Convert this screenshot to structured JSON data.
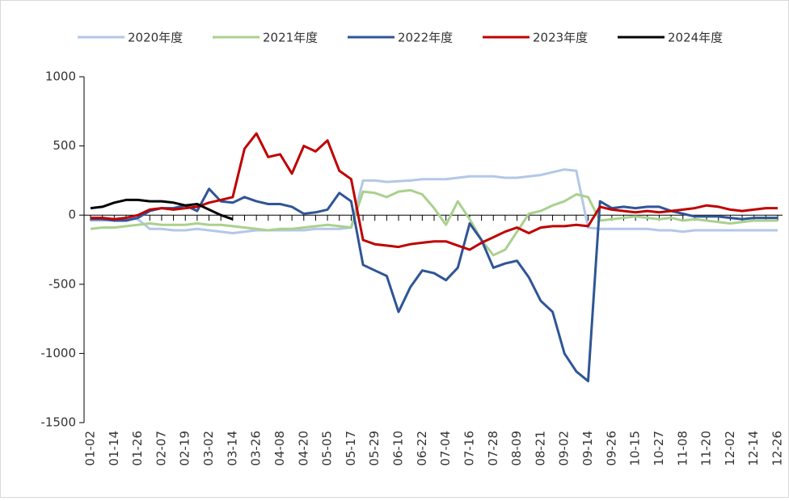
{
  "chart_data": {
    "type": "line",
    "categories": [
      "01-02",
      null,
      "01-14",
      null,
      "01-26",
      null,
      "02-07",
      null,
      "02-19",
      null,
      "03-02",
      null,
      "03-14",
      null,
      "03-26",
      null,
      "04-08",
      null,
      "04-20",
      null,
      "05-05",
      null,
      "05-17",
      null,
      "05-29",
      null,
      "06-10",
      null,
      "06-22",
      null,
      "07-04",
      null,
      "07-16",
      null,
      "07-28",
      null,
      "08-09",
      null,
      "08-21",
      null,
      "09-02",
      null,
      "09-14",
      null,
      "09-26",
      null,
      "10-15",
      null,
      "10-27",
      null,
      "11-08",
      null,
      "11-20",
      null,
      "12-02",
      null,
      "12-14",
      null,
      "12-26"
    ],
    "series": [
      {
        "name": "2020年度",
        "color": "#b4c7e7",
        "values": [
          -40,
          -40,
          -30,
          -20,
          -30,
          -100,
          -100,
          -110,
          -110,
          -100,
          -110,
          -120,
          -130,
          -120,
          -110,
          -110,
          -110,
          -110,
          -110,
          -100,
          -100,
          -100,
          -90,
          250,
          250,
          240,
          245,
          250,
          260,
          260,
          260,
          270,
          280,
          280,
          280,
          270,
          270,
          280,
          290,
          310,
          330,
          320,
          -90,
          -100,
          -100,
          -100,
          -100,
          -100,
          -110,
          -110,
          -120,
          -110,
          -110,
          -110,
          -110,
          -110,
          -110,
          -110,
          -110
        ]
      },
      {
        "name": "2021年度",
        "color": "#a9d18e",
        "values": [
          -100,
          -90,
          -90,
          -80,
          -70,
          -60,
          -70,
          -70,
          -70,
          -60,
          -70,
          -70,
          -80,
          -90,
          -100,
          -110,
          -100,
          -100,
          -90,
          -80,
          -70,
          -80,
          -90,
          170,
          160,
          130,
          170,
          180,
          150,
          50,
          -70,
          100,
          -30,
          -180,
          -290,
          -250,
          -120,
          10,
          30,
          70,
          100,
          150,
          130,
          -40,
          -30,
          -20,
          -10,
          -20,
          -30,
          -20,
          -40,
          -30,
          -40,
          -50,
          -60,
          -50,
          -40,
          -40,
          -40
        ]
      },
      {
        "name": "2022年度",
        "color": "#2f5597",
        "values": [
          -30,
          -30,
          -40,
          -40,
          -20,
          30,
          50,
          50,
          70,
          30,
          190,
          100,
          90,
          130,
          100,
          80,
          80,
          60,
          10,
          20,
          40,
          160,
          100,
          -360,
          -400,
          -440,
          -700,
          -520,
          -400,
          -420,
          -470,
          -380,
          -60,
          -180,
          -380,
          -350,
          -330,
          -450,
          -620,
          -700,
          -1000,
          -1130,
          -1200,
          100,
          50,
          60,
          50,
          60,
          60,
          30,
          10,
          -10,
          -10,
          -10,
          -20,
          -30,
          -20,
          -20,
          -20
        ]
      },
      {
        "name": "2023年度",
        "color": "#c00000",
        "values": [
          -20,
          -20,
          -30,
          -20,
          0,
          40,
          50,
          40,
          50,
          60,
          90,
          110,
          130,
          480,
          590,
          420,
          440,
          300,
          500,
          460,
          540,
          320,
          260,
          -180,
          -210,
          -220,
          -230,
          -210,
          -200,
          -190,
          -190,
          -220,
          -250,
          -200,
          -160,
          -120,
          -90,
          -130,
          -90,
          -80,
          -80,
          -70,
          -80,
          60,
          40,
          30,
          20,
          30,
          20,
          30,
          40,
          50,
          70,
          60,
          40,
          30,
          40,
          50,
          50
        ]
      },
      {
        "name": "2024年度",
        "color": "#000000",
        "values": [
          50,
          60,
          90,
          110,
          110,
          100,
          100,
          90,
          70,
          80,
          40,
          0,
          -30,
          null,
          null,
          null,
          null,
          null,
          null,
          null,
          null,
          null,
          null,
          null,
          null,
          null,
          null,
          null,
          null,
          null,
          null,
          null,
          null,
          null,
          null,
          null,
          null,
          null,
          null,
          null,
          null,
          null,
          null,
          null,
          null,
          null,
          null,
          null,
          null,
          null,
          null,
          null,
          null,
          null,
          null,
          null,
          null,
          null,
          null
        ]
      }
    ],
    "ylim": [
      -1500,
      1000
    ],
    "yticks": [
      -1500,
      -1000,
      -500,
      0,
      500,
      1000
    ],
    "grid": false,
    "legend": "top"
  }
}
